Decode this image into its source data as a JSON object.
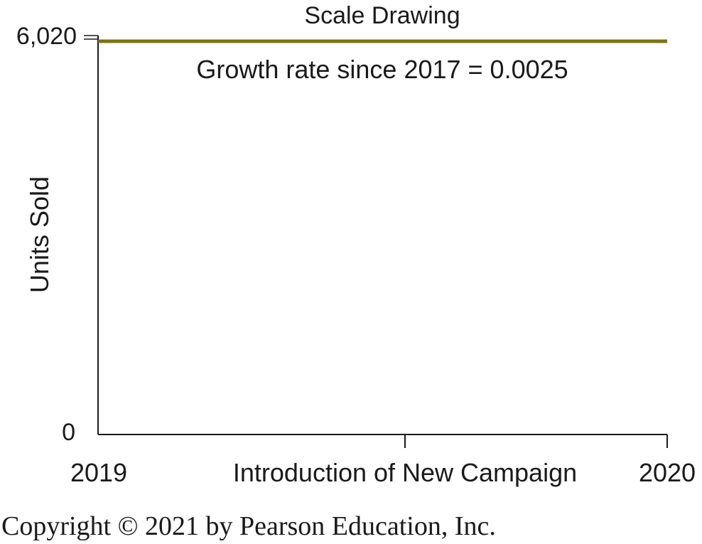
{
  "chart_data": {
    "type": "line",
    "title": "Scale Drawing",
    "annotation": "Growth rate since 2017 = 0.0025",
    "xlabel": "",
    "ylabel": "Units Sold",
    "x_tick_labels": [
      "2019",
      "Introduction of New Campaign",
      "2020"
    ],
    "y_tick_labels": [
      "0",
      "6,020"
    ],
    "ylim": [
      0,
      6020
    ],
    "grid": false,
    "series": [
      {
        "x": [
          "2019",
          "2020"
        ],
        "values": [
          6020,
          6020
        ],
        "color": "#7a7418"
      }
    ]
  },
  "footer": {
    "copyright": "Copyright © 2021 by Pearson Education, Inc."
  },
  "colors": {
    "series_line": "#7a7418",
    "axis": "#1a1a1a",
    "text": "#1a1a1a"
  }
}
